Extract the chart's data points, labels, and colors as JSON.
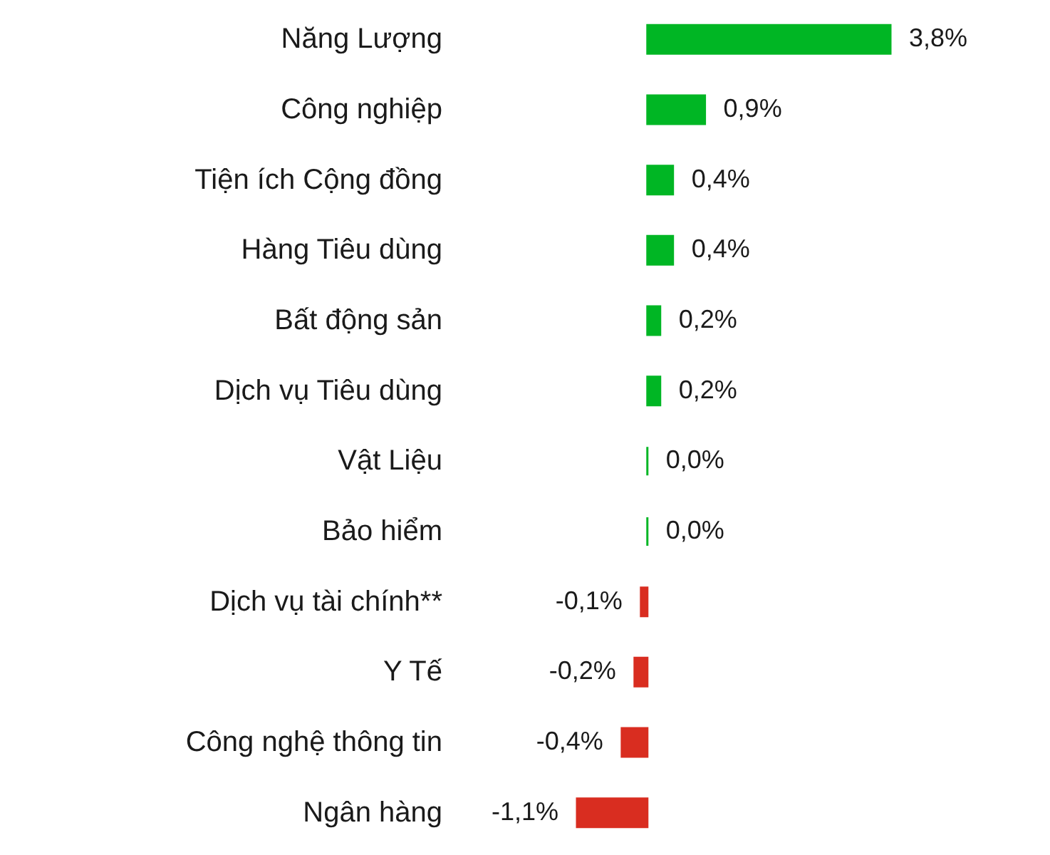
{
  "chart_data": {
    "type": "bar",
    "orientation": "horizontal",
    "categories": [
      "Năng Lượng",
      "Công nghiệp",
      "Tiện ích Cộng đồng",
      "Hàng Tiêu dùng",
      "Bất động sản",
      "Dịch vụ Tiêu dùng",
      "Vật Liệu",
      "Bảo hiểm",
      "Dịch vụ tài chính**",
      "Y Tế",
      "Công nghệ thông tin",
      "Ngân hàng"
    ],
    "values": [
      3.8,
      0.9,
      0.4,
      0.4,
      0.2,
      0.2,
      0.0,
      0.0,
      -0.1,
      -0.2,
      -0.4,
      -1.1
    ],
    "colors": [
      "#00b624",
      "#00b624",
      "#00b624",
      "#00b624",
      "#00b624",
      "#00b624",
      "#00b624",
      "#00b624",
      "#d92d20",
      "#d92d20",
      "#d92d20",
      "#d92d20"
    ],
    "value_labels": [
      "3,8%",
      "0,9%",
      "0,4%",
      "0,4%",
      "0,2%",
      "0,2%",
      "0,0%",
      "0,0%",
      "-0,1%",
      "-0,2%",
      "-0,4%",
      "-1,1%"
    ]
  }
}
